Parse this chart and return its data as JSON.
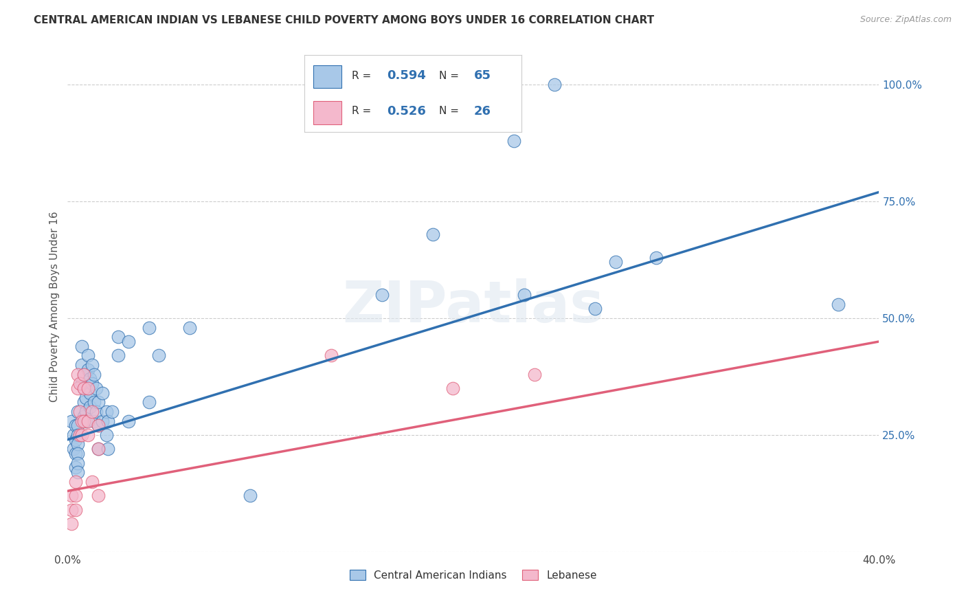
{
  "title": "CENTRAL AMERICAN INDIAN VS LEBANESE CHILD POVERTY AMONG BOYS UNDER 16 CORRELATION CHART",
  "source": "Source: ZipAtlas.com",
  "ylabel": "Child Poverty Among Boys Under 16",
  "xmin": 0.0,
  "xmax": 0.4,
  "ymin": 0.0,
  "ymax": 1.05,
  "yticks": [
    0.0,
    0.25,
    0.5,
    0.75,
    1.0
  ],
  "ytick_labels": [
    "",
    "25.0%",
    "50.0%",
    "75.0%",
    "100.0%"
  ],
  "xticks": [
    0.0,
    0.1,
    0.2,
    0.3,
    0.4
  ],
  "xtick_labels": [
    "0.0%",
    "",
    "",
    "",
    "40.0%"
  ],
  "watermark": "ZIPatlas",
  "color_blue": "#a8c8e8",
  "color_pink": "#f4b8cc",
  "line_blue": "#3070b0",
  "line_pink": "#e0607a",
  "blue_scatter": [
    [
      0.002,
      0.28
    ],
    [
      0.003,
      0.25
    ],
    [
      0.003,
      0.22
    ],
    [
      0.004,
      0.27
    ],
    [
      0.004,
      0.24
    ],
    [
      0.004,
      0.21
    ],
    [
      0.004,
      0.18
    ],
    [
      0.005,
      0.3
    ],
    [
      0.005,
      0.27
    ],
    [
      0.005,
      0.25
    ],
    [
      0.005,
      0.23
    ],
    [
      0.005,
      0.21
    ],
    [
      0.005,
      0.19
    ],
    [
      0.005,
      0.17
    ],
    [
      0.007,
      0.44
    ],
    [
      0.007,
      0.4
    ],
    [
      0.007,
      0.36
    ],
    [
      0.008,
      0.38
    ],
    [
      0.008,
      0.35
    ],
    [
      0.008,
      0.32
    ],
    [
      0.008,
      0.29
    ],
    [
      0.009,
      0.33
    ],
    [
      0.009,
      0.3
    ],
    [
      0.009,
      0.28
    ],
    [
      0.01,
      0.42
    ],
    [
      0.01,
      0.39
    ],
    [
      0.01,
      0.35
    ],
    [
      0.011,
      0.37
    ],
    [
      0.011,
      0.34
    ],
    [
      0.011,
      0.31
    ],
    [
      0.012,
      0.4
    ],
    [
      0.012,
      0.36
    ],
    [
      0.013,
      0.38
    ],
    [
      0.013,
      0.32
    ],
    [
      0.013,
      0.28
    ],
    [
      0.014,
      0.35
    ],
    [
      0.014,
      0.3
    ],
    [
      0.015,
      0.32
    ],
    [
      0.015,
      0.27
    ],
    [
      0.015,
      0.22
    ],
    [
      0.017,
      0.34
    ],
    [
      0.017,
      0.28
    ],
    [
      0.019,
      0.3
    ],
    [
      0.019,
      0.25
    ],
    [
      0.02,
      0.28
    ],
    [
      0.02,
      0.22
    ],
    [
      0.022,
      0.3
    ],
    [
      0.025,
      0.46
    ],
    [
      0.025,
      0.42
    ],
    [
      0.03,
      0.45
    ],
    [
      0.03,
      0.28
    ],
    [
      0.04,
      0.48
    ],
    [
      0.04,
      0.32
    ],
    [
      0.045,
      0.42
    ],
    [
      0.06,
      0.48
    ],
    [
      0.09,
      0.12
    ],
    [
      0.155,
      0.55
    ],
    [
      0.18,
      0.68
    ],
    [
      0.22,
      0.88
    ],
    [
      0.225,
      0.55
    ],
    [
      0.24,
      1.0
    ],
    [
      0.26,
      0.52
    ],
    [
      0.27,
      0.62
    ],
    [
      0.29,
      0.63
    ],
    [
      0.38,
      0.53
    ]
  ],
  "pink_scatter": [
    [
      0.002,
      0.12
    ],
    [
      0.002,
      0.09
    ],
    [
      0.002,
      0.06
    ],
    [
      0.004,
      0.15
    ],
    [
      0.004,
      0.12
    ],
    [
      0.004,
      0.09
    ],
    [
      0.005,
      0.38
    ],
    [
      0.005,
      0.35
    ],
    [
      0.006,
      0.36
    ],
    [
      0.006,
      0.3
    ],
    [
      0.006,
      0.25
    ],
    [
      0.007,
      0.28
    ],
    [
      0.007,
      0.25
    ],
    [
      0.008,
      0.38
    ],
    [
      0.008,
      0.35
    ],
    [
      0.008,
      0.28
    ],
    [
      0.01,
      0.35
    ],
    [
      0.01,
      0.28
    ],
    [
      0.01,
      0.25
    ],
    [
      0.012,
      0.3
    ],
    [
      0.012,
      0.15
    ],
    [
      0.015,
      0.27
    ],
    [
      0.015,
      0.22
    ],
    [
      0.015,
      0.12
    ],
    [
      0.13,
      0.42
    ],
    [
      0.19,
      0.35
    ],
    [
      0.23,
      0.38
    ]
  ],
  "blue_line_x": [
    0.0,
    0.4
  ],
  "blue_line_y": [
    0.24,
    0.77
  ],
  "pink_line_x": [
    0.0,
    0.4
  ],
  "pink_line_y": [
    0.13,
    0.45
  ],
  "background_color": "#ffffff",
  "grid_color": "#cccccc"
}
